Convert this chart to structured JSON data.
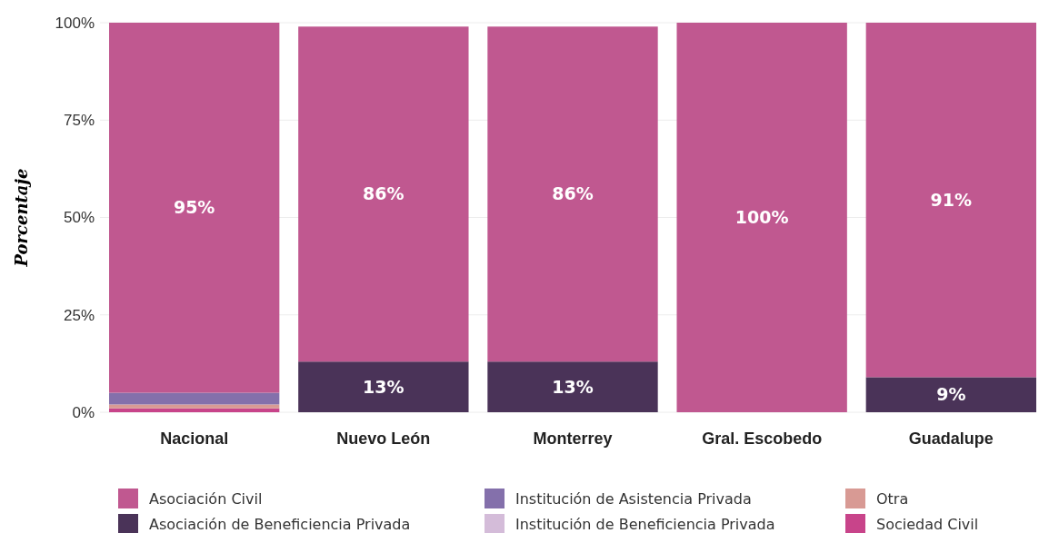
{
  "chart_data": {
    "type": "bar",
    "stacked": true,
    "ylabel": "Porcentaje",
    "categories": [
      "Nacional",
      "Nuevo León",
      "Monterrey",
      "Gral. Escobedo",
      "Guadalupe"
    ],
    "series": [
      {
        "name": "Sociedad Civil",
        "color": "#c8448a",
        "values": [
          1,
          0,
          0,
          0,
          0
        ],
        "value_labels": [
          null,
          null,
          null,
          null,
          null
        ]
      },
      {
        "name": "Otra",
        "color": "#d89a94",
        "values": [
          1,
          0,
          0,
          0,
          0
        ],
        "value_labels": [
          null,
          null,
          null,
          null,
          null
        ]
      },
      {
        "name": "Institución de Beneficiencia Privada",
        "color": "#d4bcd9",
        "values": [
          0,
          0,
          0,
          0,
          0
        ],
        "value_labels": [
          null,
          null,
          null,
          null,
          null
        ]
      },
      {
        "name": "Institución de Asistencia Privada",
        "color": "#8470ab",
        "values": [
          3,
          0,
          0,
          0,
          0
        ],
        "value_labels": [
          null,
          null,
          null,
          null,
          null
        ]
      },
      {
        "name": "Asociación de Beneficiencia Privada",
        "color": "#4a3358",
        "values": [
          0,
          13,
          13,
          0,
          9
        ],
        "value_labels": [
          null,
          "13%",
          "13%",
          null,
          "9%"
        ]
      },
      {
        "name": "Asociación Civil",
        "color": "#c05890",
        "values": [
          95,
          86,
          86,
          100,
          91
        ],
        "value_labels": [
          "95%",
          "86%",
          "86%",
          "100%",
          "91%"
        ]
      }
    ],
    "ylim": [
      0,
      100
    ],
    "yticks": [
      {
        "value": 0,
        "label": "0%"
      },
      {
        "value": 25,
        "label": "25%"
      },
      {
        "value": 50,
        "label": "50%"
      },
      {
        "value": 75,
        "label": "75%"
      },
      {
        "value": 100,
        "label": "100%"
      }
    ],
    "grid": "y",
    "legend": "bottom"
  }
}
